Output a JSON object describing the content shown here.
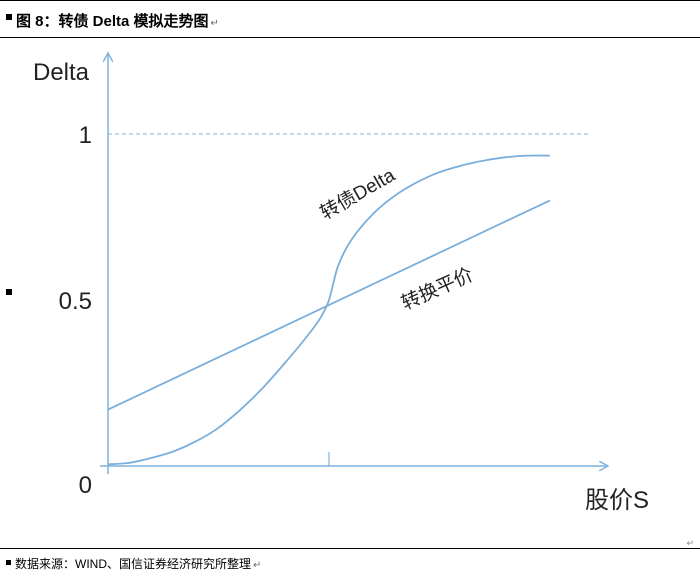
{
  "header": {
    "title": "图 8：转债 Delta 模拟走势图",
    "mark": "↵"
  },
  "footer": {
    "source": "数据来源：WIND、国信证券经济研究所整理",
    "mark": "↵"
  },
  "chart_data": {
    "type": "line",
    "title": "",
    "xlabel": "股价S",
    "ylabel": "Delta",
    "yticks": [
      "0",
      "0.5",
      "1"
    ],
    "ylim": [
      0,
      1
    ],
    "xlim": [
      0,
      1
    ],
    "grid": false,
    "reference_lines": [
      {
        "y": 1,
        "style": "dashed"
      }
    ],
    "x_marker": 0.5,
    "series": [
      {
        "name": "转债Delta",
        "x": [
          0,
          0.05,
          0.1,
          0.15,
          0.2,
          0.25,
          0.3,
          0.35,
          0.4,
          0.45,
          0.48,
          0.5,
          0.52,
          0.55,
          0.6,
          0.65,
          0.7,
          0.75,
          0.8,
          0.85,
          0.9,
          0.95,
          1.0
        ],
        "values": [
          0.005,
          0.01,
          0.025,
          0.045,
          0.075,
          0.115,
          0.17,
          0.235,
          0.31,
          0.39,
          0.445,
          0.5,
          0.6,
          0.68,
          0.76,
          0.815,
          0.855,
          0.885,
          0.905,
          0.92,
          0.93,
          0.935,
          0.935
        ]
      },
      {
        "name": "转换平价",
        "x": [
          0,
          1.0
        ],
        "values": [
          0.17,
          0.8
        ]
      }
    ]
  }
}
